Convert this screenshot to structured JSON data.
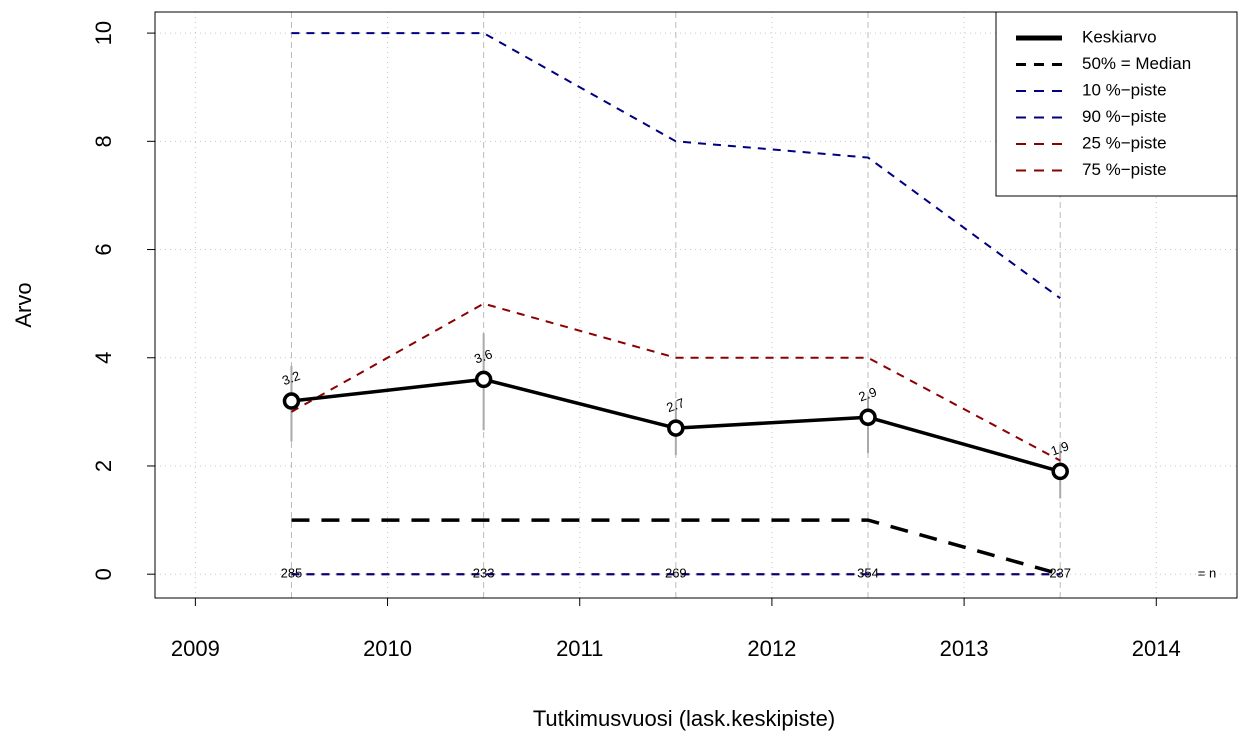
{
  "chart_data": {
    "type": "line",
    "x_label": "Tutkimusvuosi (lask.keskipiste)",
    "y_label": "Arvo",
    "x": [
      2009.5,
      2010.5,
      2011.5,
      2012.5,
      2013.5
    ],
    "series": [
      {
        "name": "Keskiarvo",
        "color": "#000000",
        "values": [
          3.2,
          3.6,
          2.7,
          2.9,
          1.9
        ],
        "style": "solid"
      },
      {
        "name": "50% = Median",
        "color": "#000000",
        "values": [
          1,
          1,
          1,
          1,
          0
        ],
        "style": "longdash"
      },
      {
        "name": "10 %−piste",
        "color": "#000080",
        "values": [
          0,
          0,
          0,
          0,
          0
        ],
        "style": "dash"
      },
      {
        "name": "90 %−piste",
        "color": "#000080",
        "values": [
          10,
          10,
          8,
          7.7,
          5.1
        ],
        "style": "dash"
      },
      {
        "name": "25 %−piste",
        "color": "#8b0000",
        "values": [
          0,
          0,
          0,
          0,
          0
        ],
        "style": "dash"
      },
      {
        "name": "75 %−piste",
        "color": "#8b0000",
        "values": [
          3,
          5,
          4,
          4,
          2.1
        ],
        "style": "dash"
      }
    ],
    "error_bars": {
      "low": [
        2.45,
        2.66,
        2.2,
        2.24,
        1.4
      ],
      "high": [
        3.85,
        4.45,
        3.2,
        3.3,
        2.4
      ]
    },
    "n": [
      285,
      233,
      269,
      354,
      237
    ],
    "n_label": "= n",
    "xlim": [
      2008.79,
      2014.42
    ],
    "ylim": [
      -0.44,
      10.39
    ],
    "xticks": [
      2009,
      2010,
      2011,
      2012,
      2013,
      2014
    ],
    "yticks": [
      0,
      2,
      4,
      6,
      8,
      10
    ],
    "grid": true,
    "legend": "top-right"
  }
}
